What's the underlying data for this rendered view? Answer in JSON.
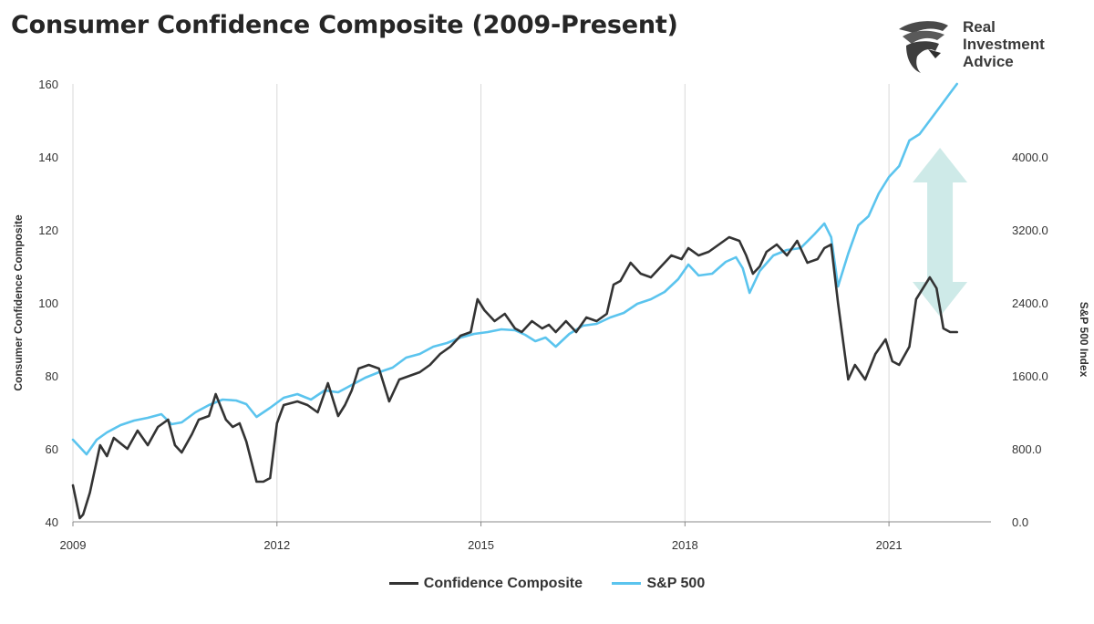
{
  "header": {
    "title": "Consumer Confidence Composite (2009-Present)"
  },
  "logo": {
    "line1": "Real",
    "line2": "Investment",
    "line3": "Advice",
    "icon": "eagle-head-icon"
  },
  "legend": {
    "series1": "Confidence Composite",
    "series2": "S&P 500"
  },
  "colors": {
    "confidence": "#333333",
    "sp500": "#5bc4ee",
    "arrow": "#c9e8e6"
  },
  "chart_data": {
    "type": "line",
    "title": "Consumer Confidence Composite (2009-Present)",
    "xlabel": "",
    "ylabel": "Consumer Confidence Composite",
    "y2label": "S&P 500 Index",
    "xlim": [
      2009,
      2022.5
    ],
    "ylim": [
      40,
      160
    ],
    "y2lim": [
      0,
      4800
    ],
    "x_ticks": [
      "2009",
      "2012",
      "2015",
      "2018",
      "2021"
    ],
    "y_ticks": [
      "40",
      "60",
      "80",
      "100",
      "120",
      "140",
      "160"
    ],
    "y2_ticks": [
      "0.0",
      "800.0",
      "1600.0",
      "2400.0",
      "3200.0",
      "4000.0"
    ],
    "vertical_gridlines": true,
    "annotation": "double-headed arrow indicating divergence between S&P 500 and Confidence Composite",
    "series": [
      {
        "name": "Confidence Composite",
        "axis": "left",
        "x": [
          2009.0,
          2009.1,
          2009.15,
          2009.25,
          2009.4,
          2009.5,
          2009.6,
          2009.8,
          2009.95,
          2010.1,
          2010.25,
          2010.4,
          2010.5,
          2010.6,
          2010.75,
          2010.85,
          2011.0,
          2011.1,
          2011.25,
          2011.35,
          2011.45,
          2011.55,
          2011.7,
          2011.8,
          2011.9,
          2012.0,
          2012.1,
          2012.3,
          2012.45,
          2012.6,
          2012.75,
          2012.9,
          2013.0,
          2013.1,
          2013.2,
          2013.35,
          2013.5,
          2013.65,
          2013.8,
          2013.95,
          2014.1,
          2014.25,
          2014.4,
          2014.55,
          2014.7,
          2014.85,
          2014.95,
          2015.05,
          2015.2,
          2015.35,
          2015.5,
          2015.6,
          2015.75,
          2015.9,
          2016.0,
          2016.1,
          2016.25,
          2016.4,
          2016.55,
          2016.7,
          2016.85,
          2016.95,
          2017.05,
          2017.2,
          2017.35,
          2017.5,
          2017.65,
          2017.8,
          2017.95,
          2018.05,
          2018.2,
          2018.35,
          2018.5,
          2018.65,
          2018.8,
          2018.9,
          2019.0,
          2019.1,
          2019.2,
          2019.35,
          2019.5,
          2019.65,
          2019.8,
          2019.95,
          2020.05,
          2020.15,
          2020.25,
          2020.4,
          2020.5,
          2020.65,
          2020.8,
          2020.95,
          2021.05,
          2021.15,
          2021.3,
          2021.4,
          2021.5,
          2021.6,
          2021.7,
          2021.8,
          2021.9,
          2022.0
        ],
        "values": [
          50,
          41,
          42,
          48,
          61,
          58,
          63,
          60,
          65,
          61,
          66,
          68,
          61,
          59,
          64,
          68,
          69,
          75,
          68,
          66,
          67,
          62,
          51,
          51,
          52,
          67,
          72,
          73,
          72,
          70,
          78,
          69,
          72,
          76,
          82,
          83,
          82,
          73,
          79,
          80,
          81,
          83,
          86,
          88,
          91,
          92,
          101,
          98,
          95,
          97,
          93,
          92,
          95,
          93,
          94,
          92,
          95,
          92,
          96,
          95,
          97,
          105,
          106,
          111,
          108,
          107,
          110,
          113,
          112,
          115,
          113,
          114,
          116,
          118,
          117,
          113,
          108,
          110,
          114,
          116,
          113,
          117,
          111,
          112,
          115,
          116,
          100,
          79,
          83,
          79,
          86,
          90,
          84,
          83,
          88,
          101,
          104,
          107,
          104,
          93,
          92,
          92
        ]
      },
      {
        "name": "S&P 500",
        "axis": "right",
        "x": [
          2009.0,
          2009.1,
          2009.2,
          2009.35,
          2009.5,
          2009.7,
          2009.9,
          2010.1,
          2010.3,
          2010.45,
          2010.6,
          2010.8,
          2011.0,
          2011.2,
          2011.4,
          2011.55,
          2011.7,
          2011.9,
          2012.1,
          2012.3,
          2012.5,
          2012.7,
          2012.9,
          2013.1,
          2013.3,
          2013.5,
          2013.7,
          2013.9,
          2014.1,
          2014.3,
          2014.5,
          2014.7,
          2014.9,
          2015.1,
          2015.3,
          2015.5,
          2015.65,
          2015.8,
          2015.95,
          2016.1,
          2016.3,
          2016.5,
          2016.7,
          2016.9,
          2017.1,
          2017.3,
          2017.5,
          2017.7,
          2017.9,
          2018.05,
          2018.2,
          2018.4,
          2018.6,
          2018.75,
          2018.85,
          2018.95,
          2019.1,
          2019.3,
          2019.5,
          2019.7,
          2019.9,
          2020.05,
          2020.15,
          2020.25,
          2020.4,
          2020.55,
          2020.7,
          2020.85,
          2021.0,
          2021.15,
          2021.3,
          2021.45,
          2021.6,
          2021.75,
          2021.9,
          2022.0
        ],
        "values": [
          900,
          820,
          740,
          900,
          980,
          1060,
          1110,
          1140,
          1180,
          1070,
          1090,
          1200,
          1280,
          1340,
          1330,
          1290,
          1150,
          1250,
          1360,
          1400,
          1340,
          1440,
          1420,
          1500,
          1580,
          1640,
          1690,
          1800,
          1840,
          1920,
          1960,
          2020,
          2060,
          2080,
          2110,
          2100,
          2050,
          1980,
          2020,
          1920,
          2060,
          2150,
          2170,
          2240,
          2290,
          2390,
          2440,
          2520,
          2660,
          2820,
          2700,
          2720,
          2850,
          2900,
          2780,
          2510,
          2750,
          2920,
          2980,
          3000,
          3150,
          3270,
          3120,
          2580,
          2940,
          3250,
          3350,
          3600,
          3780,
          3900,
          4180,
          4250,
          4400,
          4550,
          4700,
          4800
        ]
      }
    ]
  }
}
